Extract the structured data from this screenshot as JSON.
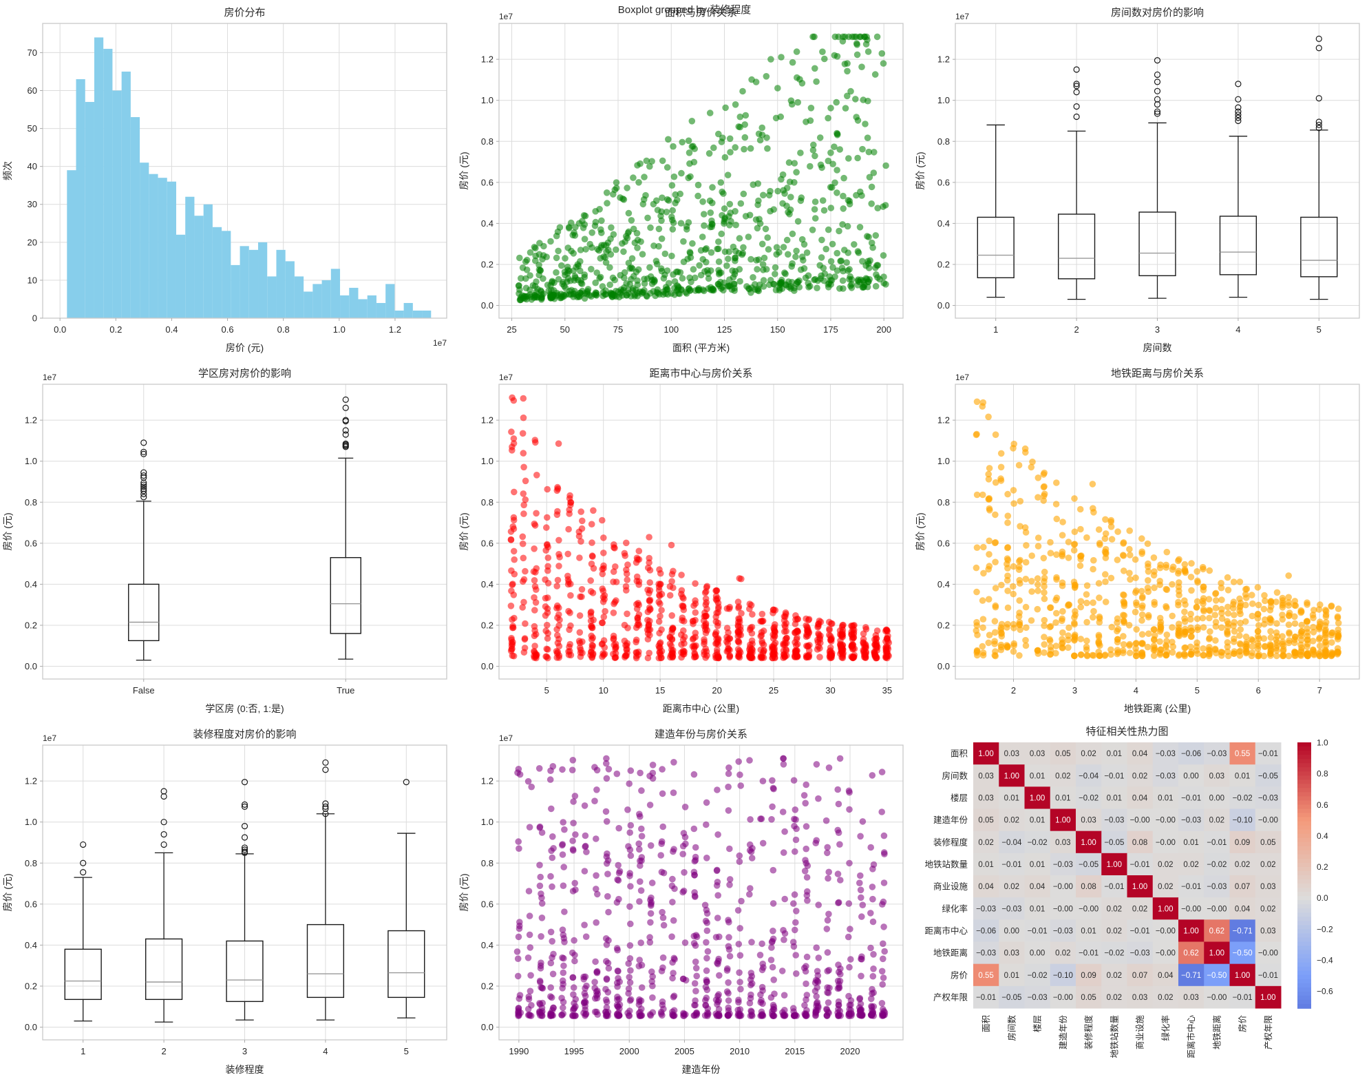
{
  "figure": {
    "suptitle": "Boxplot grouped by 装修程度",
    "background": "#ffffff",
    "text_color": "#262626",
    "grid_color": "#dcdcdc",
    "spine_color": "#c9c9c9",
    "offset_text": "1e7"
  },
  "chart_data": [
    {
      "id": "price-hist",
      "type": "histogram",
      "title": "房价分布",
      "xlabel": "房价 (元)",
      "ylabel": "频次",
      "x_offset": "1e7",
      "bar_color": "#87CEEB",
      "bin_start": 0.025,
      "bin_width": 0.0326,
      "counts": [
        39,
        63,
        57,
        74,
        71,
        60,
        65,
        53,
        41,
        38,
        37,
        36,
        22,
        32,
        27,
        30,
        24,
        23,
        14,
        19,
        18,
        20,
        11,
        18,
        15,
        11,
        7,
        9,
        10,
        13,
        6,
        8,
        5,
        6,
        4,
        9,
        2,
        4,
        2,
        2
      ],
      "xlim": [
        -0.062,
        1.385
      ],
      "ylim": [
        0,
        77.7
      ],
      "xticks": [
        0,
        0.2,
        0.4,
        0.6,
        0.8,
        1.0,
        1.2
      ],
      "xtick_labels": [
        "0.0",
        "0.2",
        "0.4",
        "0.6",
        "0.8",
        "1.0",
        "1.2"
      ],
      "yticks": [
        0,
        10,
        20,
        30,
        40,
        50,
        60,
        70
      ],
      "ytick_labels": [
        "0",
        "10",
        "20",
        "30",
        "40",
        "50",
        "60",
        "70"
      ]
    },
    {
      "id": "area-scatter",
      "type": "scatter",
      "title": "面积与房价关系",
      "xlabel": "面积 (平方米)",
      "ylabel": "房价 (元)",
      "y_offset": "1e7",
      "color": "#008000",
      "alpha": 0.55,
      "point_radius": 4.8,
      "gen": {
        "model": "fan",
        "seed": 11,
        "n": 900,
        "x_min": 28,
        "x_max": 201,
        "slope": 0.0065,
        "t_base": 0.07,
        "t_amp": 1.2,
        "t_pow": 2.2,
        "floor_base": 0.025,
        "floor_slope": 0.0004,
        "y_cap": 1.31
      },
      "xlim": [
        19,
        209
      ],
      "xticks": [
        25,
        50,
        75,
        100,
        125,
        150,
        175,
        200
      ],
      "xtick_labels": [
        "25",
        "50",
        "75",
        "100",
        "125",
        "150",
        "175",
        "200"
      ],
      "ylim": [
        -0.062,
        1.375
      ],
      "yticks": [
        0,
        0.2,
        0.4,
        0.6,
        0.8,
        1.0,
        1.2
      ],
      "ytick_labels": [
        "0.0",
        "0.2",
        "0.4",
        "0.6",
        "0.8",
        "1.0",
        "1.2"
      ]
    },
    {
      "id": "rooms-box",
      "type": "boxplot",
      "title": "房间数对房价的影响",
      "xlabel": "房间数",
      "ylabel": "房价 (元)",
      "y_offset": "1e7",
      "categories": [
        "1",
        "2",
        "3",
        "4",
        "5"
      ],
      "box_width_units": 0.45,
      "stats": [
        {
          "whislo": 0.04,
          "q1": 0.135,
          "med": 0.245,
          "q3": 0.43,
          "whishi": 0.88,
          "fliers": []
        },
        {
          "whislo": 0.03,
          "q1": 0.13,
          "med": 0.23,
          "q3": 0.445,
          "whishi": 0.85,
          "fliers": [
            0.92,
            0.97,
            1.04,
            1.07,
            1.08,
            1.15
          ]
        },
        {
          "whislo": 0.035,
          "q1": 0.145,
          "med": 0.255,
          "q3": 0.455,
          "whishi": 0.89,
          "fliers": [
            0.935,
            0.945,
            0.98,
            1.005,
            1.045,
            1.09,
            1.125,
            1.195
          ]
        },
        {
          "whislo": 0.04,
          "q1": 0.15,
          "med": 0.26,
          "q3": 0.435,
          "whishi": 0.825,
          "fliers": [
            0.9,
            0.915,
            0.93,
            0.945,
            0.965,
            1.005,
            1.08
          ]
        },
        {
          "whislo": 0.03,
          "q1": 0.14,
          "med": 0.22,
          "q3": 0.43,
          "whishi": 0.855,
          "fliers": [
            0.865,
            0.88,
            0.895,
            1.01,
            1.255,
            1.3
          ]
        }
      ],
      "xlim": [
        0.5,
        5.5
      ],
      "ylim": [
        -0.062,
        1.375
      ],
      "yticks": [
        0,
        0.2,
        0.4,
        0.6,
        0.8,
        1.0,
        1.2
      ],
      "ytick_labels": [
        "0.0",
        "0.2",
        "0.4",
        "0.6",
        "0.8",
        "1.0",
        "1.2"
      ]
    },
    {
      "id": "school-box",
      "type": "boxplot",
      "title": "学区房对房价的影响",
      "xlabel": "学区房 (0:否, 1:是)",
      "ylabel": "房价 (元)",
      "y_offset": "1e7",
      "categories": [
        "False",
        "True"
      ],
      "box_width_units": 0.15,
      "stats": [
        {
          "whislo": 0.03,
          "q1": 0.125,
          "med": 0.215,
          "q3": 0.4,
          "whishi": 0.805,
          "fliers": [
            0.825,
            0.84,
            0.855,
            0.865,
            0.875,
            0.885,
            0.895,
            0.92,
            0.93,
            0.945,
            1.035,
            1.045,
            1.09
          ]
        },
        {
          "whislo": 0.035,
          "q1": 0.16,
          "med": 0.305,
          "q3": 0.53,
          "whishi": 1.015,
          "fliers": [
            1.07,
            1.075,
            1.08,
            1.085,
            1.13,
            1.15,
            1.195,
            1.2,
            1.26,
            1.3
          ]
        }
      ],
      "xlim": [
        0.5,
        2.5
      ],
      "ylim": [
        -0.062,
        1.375
      ],
      "yticks": [
        0,
        0.2,
        0.4,
        0.6,
        0.8,
        1.0,
        1.2
      ],
      "ytick_labels": [
        "0.0",
        "0.2",
        "0.4",
        "0.6",
        "0.8",
        "1.0",
        "1.2"
      ]
    },
    {
      "id": "distance-scatter",
      "type": "scatter",
      "title": "距离市中心与房价关系",
      "xlabel": "距离市中心 (公里)",
      "ylabel": "房价 (元)",
      "y_offset": "1e7",
      "color": "#ff0000",
      "alpha": 0.55,
      "point_radius": 4.8,
      "gen": {
        "model": "decay",
        "seed": 22,
        "n": 950,
        "col_min": 2,
        "col_step": 1,
        "col_count": 34,
        "jitter": 0.3,
        "a": 1.22,
        "tau": 12,
        "base": 0.1,
        "floor": 0.04,
        "pow": 1.6,
        "out_frac": 0.02,
        "out_mult": 1.35,
        "y_cap": 1.31
      },
      "xlim": [
        0.8,
        36.4
      ],
      "xticks": [
        5,
        10,
        15,
        20,
        25,
        30,
        35
      ],
      "xtick_labels": [
        "5",
        "10",
        "15",
        "20",
        "25",
        "30",
        "35"
      ],
      "ylim": [
        -0.062,
        1.375
      ],
      "yticks": [
        0,
        0.2,
        0.4,
        0.6,
        0.8,
        1.0,
        1.2
      ],
      "ytick_labels": [
        "0.0",
        "0.2",
        "0.4",
        "0.6",
        "0.8",
        "1.0",
        "1.2"
      ]
    },
    {
      "id": "metro-scatter",
      "type": "scatter",
      "title": "地铁距离与房价关系",
      "xlabel": "地铁距离 (公里)",
      "ylabel": "房价 (元)",
      "y_offset": "1e7",
      "color": "#ffa500",
      "alpha": 0.6,
      "point_radius": 4.8,
      "gen": {
        "model": "decay",
        "seed": 33,
        "n": 850,
        "col_min": 1.4,
        "col_step": 0.1,
        "col_count": 60,
        "jitter": 0.02,
        "a": 1.25,
        "tau": 3.3,
        "base": 0.08,
        "floor": 0.05,
        "pow": 1.7,
        "out_frac": 0.02,
        "out_mult": 1.3,
        "y_cap": 1.29
      },
      "xlim": [
        1.05,
        7.65
      ],
      "xticks": [
        2,
        3,
        4,
        5,
        6,
        7
      ],
      "xtick_labels": [
        "2",
        "3",
        "4",
        "5",
        "6",
        "7"
      ],
      "ylim": [
        -0.062,
        1.375
      ],
      "yticks": [
        0,
        0.2,
        0.4,
        0.6,
        0.8,
        1.0,
        1.2
      ],
      "ytick_labels": [
        "0.0",
        "0.2",
        "0.4",
        "0.6",
        "0.8",
        "1.0",
        "1.2"
      ]
    },
    {
      "id": "renovation-box",
      "type": "boxplot",
      "title": "装修程度对房价的影响",
      "xlabel": "装修程度",
      "ylabel": "房价 (元)",
      "y_offset": "1e7",
      "categories": [
        "1",
        "2",
        "3",
        "4",
        "5"
      ],
      "box_width_units": 0.45,
      "stats": [
        {
          "whislo": 0.03,
          "q1": 0.135,
          "med": 0.225,
          "q3": 0.38,
          "whishi": 0.73,
          "fliers": [
            0.755,
            0.8,
            0.89
          ]
        },
        {
          "whislo": 0.025,
          "q1": 0.135,
          "med": 0.22,
          "q3": 0.43,
          "whishi": 0.85,
          "fliers": [
            0.89,
            0.94,
            1.0,
            1.125,
            1.15
          ]
        },
        {
          "whislo": 0.035,
          "q1": 0.125,
          "med": 0.23,
          "q3": 0.42,
          "whishi": 0.845,
          "fliers": [
            0.85,
            0.855,
            0.865,
            0.875,
            0.925,
            0.98,
            1.075,
            1.085,
            1.195
          ]
        },
        {
          "whislo": 0.035,
          "q1": 0.145,
          "med": 0.26,
          "q3": 0.5,
          "whishi": 1.04,
          "fliers": [
            1.04,
            1.065,
            1.075,
            1.09,
            1.255,
            1.29
          ]
        },
        {
          "whislo": 0.045,
          "q1": 0.145,
          "med": 0.265,
          "q3": 0.47,
          "whishi": 0.945,
          "fliers": [
            1.195
          ]
        }
      ],
      "xlim": [
        0.5,
        5.5
      ],
      "ylim": [
        -0.062,
        1.375
      ],
      "yticks": [
        0,
        0.2,
        0.4,
        0.6,
        0.8,
        1.0,
        1.2
      ],
      "ytick_labels": [
        "0.0",
        "0.2",
        "0.4",
        "0.6",
        "0.8",
        "1.0",
        "1.2"
      ]
    },
    {
      "id": "year-scatter",
      "type": "scatter",
      "title": "建造年份与房价关系",
      "xlabel": "建造年份",
      "ylabel": "房价 (元)",
      "y_offset": "1e7",
      "color": "#800080",
      "alpha": 0.55,
      "point_radius": 4.8,
      "gen": {
        "model": "uniform",
        "seed": 44,
        "n": 900,
        "col_min": 1990,
        "col_step": 1,
        "col_count": 34,
        "jitter": 0.3,
        "y_base": 0.055,
        "y_amp": 1.26,
        "y_pow": 2.5,
        "y_cap": 1.31
      },
      "xlim": [
        1988.2,
        2024.8
      ],
      "xticks": [
        1990,
        1995,
        2000,
        2005,
        2010,
        2015,
        2020
      ],
      "xtick_labels": [
        "1990",
        "1995",
        "2000",
        "2005",
        "2010",
        "2015",
        "2020"
      ],
      "ylim": [
        -0.062,
        1.375
      ],
      "yticks": [
        0,
        0.2,
        0.4,
        0.6,
        0.8,
        1.0,
        1.2
      ],
      "ytick_labels": [
        "0.0",
        "0.2",
        "0.4",
        "0.6",
        "0.8",
        "1.0",
        "1.2"
      ]
    },
    {
      "id": "corr-heatmap",
      "type": "heatmap",
      "title": "特征相关性热力图",
      "labels": [
        "面积",
        "房间数",
        "楼层",
        "建造年份",
        "装修程度",
        "地铁站数量",
        "商业设施",
        "绿化率",
        "距离市中心",
        "地铁距离",
        "房价",
        "产权年限"
      ],
      "values": [
        [
          "1.00",
          "0.03",
          "0.03",
          "0.05",
          "0.02",
          "0.01",
          "0.04",
          "−0.03",
          "−0.06",
          "−0.03",
          "0.55",
          "−0.01"
        ],
        [
          "0.03",
          "1.00",
          "0.01",
          "0.02",
          "−0.04",
          "−0.01",
          "0.02",
          "−0.03",
          "0.00",
          "0.03",
          "0.01",
          "−0.05"
        ],
        [
          "0.03",
          "0.01",
          "1.00",
          "0.01",
          "−0.02",
          "0.01",
          "0.04",
          "0.01",
          "−0.01",
          "0.00",
          "−0.02",
          "−0.03"
        ],
        [
          "0.05",
          "0.02",
          "0.01",
          "1.00",
          "0.03",
          "−0.03",
          "−0.00",
          "−0.00",
          "−0.03",
          "0.02",
          "−0.10",
          "−0.00"
        ],
        [
          "0.02",
          "−0.04",
          "−0.02",
          "0.03",
          "1.00",
          "−0.05",
          "0.08",
          "−0.00",
          "0.01",
          "−0.01",
          "0.09",
          "0.05"
        ],
        [
          "0.01",
          "−0.01",
          "0.01",
          "−0.03",
          "−0.05",
          "1.00",
          "−0.01",
          "0.02",
          "0.02",
          "−0.02",
          "0.02",
          "0.02"
        ],
        [
          "0.04",
          "0.02",
          "0.04",
          "−0.00",
          "0.08",
          "−0.01",
          "1.00",
          "0.02",
          "−0.01",
          "−0.03",
          "0.07",
          "0.03"
        ],
        [
          "−0.03",
          "−0.03",
          "0.01",
          "−0.00",
          "−0.00",
          "0.02",
          "0.02",
          "1.00",
          "−0.00",
          "−0.00",
          "0.04",
          "0.02"
        ],
        [
          "−0.06",
          "0.00",
          "−0.01",
          "−0.03",
          "0.01",
          "0.02",
          "−0.01",
          "−0.00",
          "1.00",
          "0.62",
          "−0.71",
          "0.03"
        ],
        [
          "−0.03",
          "0.03",
          "0.00",
          "0.02",
          "−0.01",
          "−0.02",
          "−0.03",
          "−0.00",
          "0.62",
          "1.00",
          "−0.50",
          "−0.00"
        ],
        [
          "0.55",
          "0.01",
          "−0.02",
          "−0.10",
          "0.09",
          "0.02",
          "0.07",
          "0.04",
          "−0.71",
          "−0.50",
          "1.00",
          "−0.01"
        ],
        [
          "−0.01",
          "−0.05",
          "−0.03",
          "−0.00",
          "0.05",
          "0.02",
          "0.03",
          "0.02",
          "0.03",
          "−0.00",
          "−0.01",
          "1.00"
        ]
      ],
      "vmin": -0.71,
      "vmax": 1.0,
      "colorbar_ticks": [
        1.0,
        0.8,
        0.6,
        0.4,
        0.2,
        0.0,
        -0.2,
        -0.4,
        -0.6
      ],
      "colorbar_tick_labels": [
        "1.0",
        "0.8",
        "0.6",
        "0.4",
        "0.2",
        "0.0",
        "−0.2",
        "−0.4",
        "−0.6"
      ]
    }
  ]
}
